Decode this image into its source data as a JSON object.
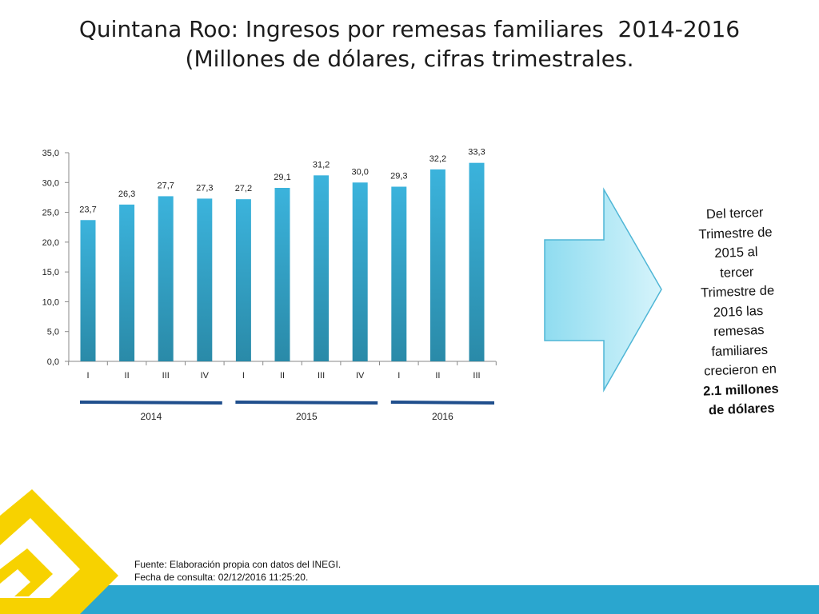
{
  "title": {
    "line1": "Quintana Roo: Ingresos por remesas familiares  2014-2016",
    "line2": "(Millones de dólares, cifras trimestrales."
  },
  "chart_data": {
    "type": "bar",
    "categories": [
      "I",
      "II",
      "III",
      "IV",
      "I",
      "II",
      "III",
      "IV",
      "I",
      "II",
      "III"
    ],
    "values": [
      23.7,
      26.3,
      27.7,
      27.3,
      27.2,
      29.1,
      31.2,
      30.0,
      29.3,
      32.2,
      33.3
    ],
    "value_labels": [
      "23,7",
      "26,3",
      "27,7",
      "27,3",
      "27,2",
      "29,1",
      "31,2",
      "30,0",
      "29,3",
      "32,2",
      "33,3"
    ],
    "yticks": [
      "0,0",
      "5,0",
      "10,0",
      "15,0",
      "20,0",
      "25,0",
      "30,0",
      "35,0"
    ],
    "ylim": [
      0,
      35
    ],
    "groups": [
      {
        "label": "2014",
        "start": 0,
        "end": 3
      },
      {
        "label": "2015",
        "start": 4,
        "end": 7
      },
      {
        "label": "2016",
        "start": 8,
        "end": 10
      }
    ],
    "bar_color_top": "#3bb3dc",
    "bar_color_bottom": "#2a8aa8",
    "group_line_color": "#1f4e8c",
    "grid": false,
    "legend": "none"
  },
  "callout": {
    "lines": [
      "Del tercer",
      "Trimestre de",
      "2015 al",
      "tercer",
      "Trimestre de",
      "2016 las",
      "remesas",
      "familiares",
      "crecieron en"
    ],
    "highlight_value": "2.1",
    "highlight_rest": " millones",
    "last_line": "de dólares"
  },
  "source": {
    "line1": "Fuente: Elaboración propia con datos del INEGI.",
    "line2": "Fecha de consulta: 02/12/2016 11:25:20."
  },
  "colors": {
    "footer": "#2aa6cf",
    "logo": "#f7d200",
    "arrow_fill_left": "#8fdcf0",
    "arrow_fill_right": "#d6f4fb"
  }
}
